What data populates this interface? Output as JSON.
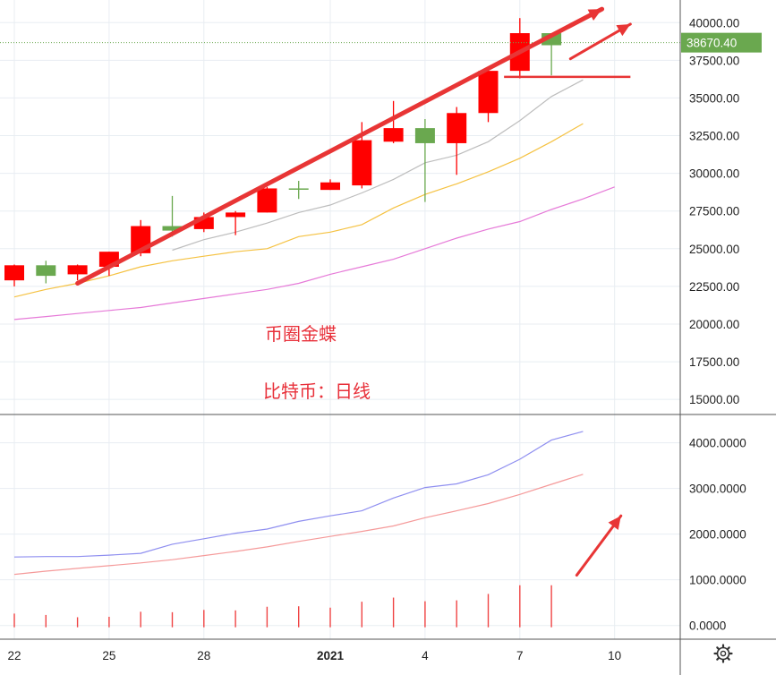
{
  "colors": {
    "up": "#6aa84f",
    "down": "#ff0000",
    "ma_gray": "#bdbdbd",
    "ma_yellow": "#f5c242",
    "ma_pink": "#e67ad8",
    "sub_blue": "#8f8ff0",
    "sub_red": "#f59a9a",
    "volume": "#f04444",
    "arrow": "#e83535",
    "last_price_bg": "#6aa84f",
    "grid": "#e8edf2"
  },
  "annotations": {
    "line1": "币圈金蝶",
    "line2": "比特币：日线"
  },
  "settings_icon": "gear-icon",
  "chart_data": [
    {
      "type": "candlestick",
      "name": "price",
      "ylim": [
        14000,
        41500
      ],
      "y_ticks": [
        "40000.00",
        "37500.00",
        "35000.00",
        "32500.00",
        "30000.00",
        "27500.00",
        "25000.00",
        "22500.00",
        "20000.00",
        "17500.00",
        "15000.00"
      ],
      "y_tick_values": [
        40000,
        37500,
        35000,
        32500,
        30000,
        27500,
        25000,
        22500,
        20000,
        17500,
        15000
      ],
      "x_ticks": [
        {
          "label": "22",
          "index": 0,
          "bold": false
        },
        {
          "label": "25",
          "index": 3,
          "bold": false
        },
        {
          "label": "28",
          "index": 6,
          "bold": false
        },
        {
          "label": "2021",
          "index": 10,
          "bold": true
        },
        {
          "label": "4",
          "index": 13,
          "bold": false
        },
        {
          "label": "7",
          "index": 16,
          "bold": false
        },
        {
          "label": "10",
          "index": 19,
          "bold": false
        }
      ],
      "last_price": 38670.4,
      "last_price_label": "38670.40",
      "candles": [
        {
          "o": 23900,
          "h": 23950,
          "l": 22500,
          "c": 22900
        },
        {
          "o": 23200,
          "h": 24200,
          "l": 22700,
          "c": 23900
        },
        {
          "o": 23900,
          "h": 23950,
          "l": 22900,
          "c": 23300
        },
        {
          "o": 24800,
          "h": 24800,
          "l": 23200,
          "c": 23800
        },
        {
          "o": 26500,
          "h": 26900,
          "l": 24500,
          "c": 24700
        },
        {
          "o": 26200,
          "h": 28500,
          "l": 25800,
          "c": 26500
        },
        {
          "o": 27100,
          "h": 27400,
          "l": 26100,
          "c": 26300
        },
        {
          "o": 27400,
          "h": 27500,
          "l": 25900,
          "c": 27100
        },
        {
          "o": 29000,
          "h": 29100,
          "l": 27400,
          "c": 27400
        },
        {
          "o": 29000,
          "h": 29500,
          "l": 28300,
          "c": 29000
        },
        {
          "o": 29400,
          "h": 29600,
          "l": 28900,
          "c": 28900
        },
        {
          "o": 32200,
          "h": 33400,
          "l": 29000,
          "c": 29200
        },
        {
          "o": 33000,
          "h": 34800,
          "l": 32000,
          "c": 32100
        },
        {
          "o": 32000,
          "h": 33600,
          "l": 28100,
          "c": 33000
        },
        {
          "o": 34000,
          "h": 34400,
          "l": 29900,
          "c": 32000
        },
        {
          "o": 36800,
          "h": 36900,
          "l": 33400,
          "c": 34000
        },
        {
          "o": 39300,
          "h": 40300,
          "l": 36300,
          "c": 36800
        },
        {
          "o": 38500,
          "h": 39300,
          "l": 36500,
          "c": 39300
        }
      ],
      "series": [
        {
          "color_key": "ma_gray",
          "start": 5,
          "values": [
            24900,
            25600,
            26100,
            26700,
            27400,
            27900,
            28700,
            29600,
            30700,
            31200,
            32100,
            33500,
            35100,
            36200
          ]
        },
        {
          "color_key": "ma_yellow",
          "start": 0,
          "values": [
            21800,
            22300,
            22700,
            23200,
            23800,
            24200,
            24500,
            24800,
            25000,
            25800,
            26100,
            26600,
            27700,
            28600,
            29300,
            30100,
            31000,
            32100,
            33300
          ]
        },
        {
          "color_key": "ma_pink",
          "start": 0,
          "values": [
            20300,
            20500,
            20700,
            20900,
            21100,
            21400,
            21700,
            22000,
            22300,
            22700,
            23300,
            23800,
            24300,
            25000,
            25700,
            26300,
            26800,
            27600,
            28300,
            29100
          ]
        }
      ],
      "markup": {
        "support_level": 36400,
        "trend_arrow": {
          "from": [
            2,
            22700
          ],
          "to": [
            18.6,
            40900
          ]
        },
        "small_arrow": {
          "from": [
            17.6,
            37600
          ],
          "to": [
            19.5,
            39900
          ]
        }
      }
    },
    {
      "type": "line",
      "name": "indicator",
      "ylim": [
        -300,
        4600
      ],
      "y_ticks": [
        "4000.0000",
        "3000.0000",
        "2000.0000",
        "1000.0000",
        "0.0000"
      ],
      "y_tick_values": [
        4000,
        3000,
        2000,
        1000,
        0
      ],
      "series": [
        {
          "color_key": "sub_blue",
          "values": [
            1500,
            1510,
            1510,
            1540,
            1580,
            1780,
            1900,
            2020,
            2110,
            2280,
            2400,
            2510,
            2790,
            3020,
            3100,
            3300,
            3640,
            4060,
            4250
          ]
        },
        {
          "color_key": "sub_red",
          "values": [
            1120,
            1190,
            1250,
            1310,
            1370,
            1440,
            1530,
            1620,
            1720,
            1840,
            1950,
            2060,
            2180,
            2360,
            2510,
            2670,
            2870,
            3090,
            3310
          ]
        }
      ],
      "bars": [
        300,
        270,
        220,
        230,
        340,
        330,
        380,
        370,
        450,
        460,
        430,
        560,
        650,
        570,
        590,
        730,
        920,
        920
      ],
      "markup": {
        "arrow": {
          "from": [
            17.8,
            1100
          ],
          "to": [
            19.2,
            2400
          ]
        }
      }
    }
  ]
}
